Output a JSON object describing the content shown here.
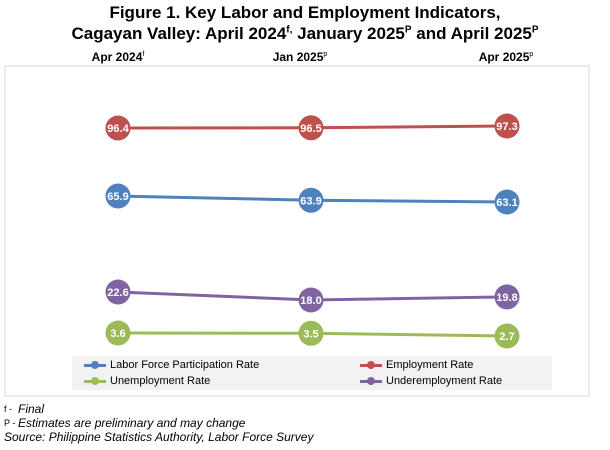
{
  "title": {
    "line1": "Figure 1. Key Labor and Employment Indicators,",
    "line2_a": "Cagayan Valley: April 2024",
    "line2_sup1": "f,",
    "line2_b": " January 2025",
    "line2_sup2": "P",
    "line2_c": " and April 2025",
    "line2_sup3": "P"
  },
  "periods": [
    {
      "label": "Apr 2024",
      "sup": "f"
    },
    {
      "label": "Jan 2025",
      "sup": "p"
    },
    {
      "label": "Apr 2025",
      "sup": "p"
    }
  ],
  "chart_data": {
    "type": "line",
    "categories": [
      "Apr 2024",
      "Jan 2025",
      "Apr 2025"
    ],
    "series": [
      {
        "name": "Employment Rate",
        "color": "#c0504d",
        "values": [
          96.4,
          96.5,
          97.3
        ],
        "labels": [
          "96.4",
          "96.5",
          "97.3"
        ]
      },
      {
        "name": "Labor Force Participation Rate",
        "color": "#4f81bd",
        "values": [
          65.9,
          63.9,
          63.1
        ],
        "labels": [
          "65.9",
          "63.9",
          "63.1"
        ]
      },
      {
        "name": "Underemployment Rate",
        "color": "#8064a2",
        "values": [
          22.6,
          18.0,
          19.8
        ],
        "labels": [
          "22.6",
          "18.0",
          "19.8"
        ]
      },
      {
        "name": "Unemployment Rate",
        "color": "#9bbb59",
        "values": [
          3.6,
          3.5,
          2.7
        ],
        "labels": [
          "3.6",
          "3.5",
          "2.7"
        ]
      }
    ],
    "legend_position": "bottom",
    "grid": false
  },
  "legend": [
    {
      "name": "Labor Force Participation Rate",
      "color": "#4f81bd"
    },
    {
      "name": "Employment Rate",
      "color": "#c0504d"
    },
    {
      "name": "Unemployment Rate",
      "color": "#9bbb59"
    },
    {
      "name": "Underemployment Rate",
      "color": "#8064a2"
    }
  ],
  "notes": [
    {
      "symbol": "f -",
      "text": "Final"
    },
    {
      "symbol": "P -",
      "text": "Estimates are preliminary and may change"
    },
    {
      "symbol": "",
      "text": "Source: Philippine Statistics Authority, Labor Force Survey"
    }
  ]
}
